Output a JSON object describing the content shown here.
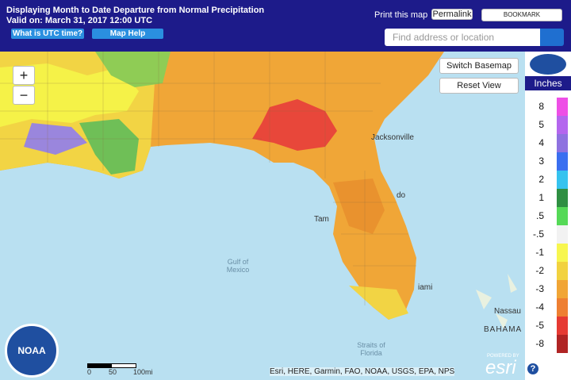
{
  "header": {
    "title": "Displaying Month to Date Departure from Normal Precipitation",
    "valid": "Valid on: March 31, 2017 12:00 UTC",
    "utc_button": "What is UTC time?",
    "help_button": "Map Help",
    "print": "Print this map",
    "permalink": "Permalink",
    "bookmark": "BOOKMARK",
    "search_placeholder": "Find address or location"
  },
  "controls": {
    "zoom_in": "+",
    "zoom_out": "−",
    "switch_basemap": "Switch Basemap",
    "reset_view": "Reset View"
  },
  "legend": {
    "title": "Inches",
    "items": [
      {
        "label": "8",
        "color": "#ee4fe6"
      },
      {
        "label": "5",
        "color": "#b466ee"
      },
      {
        "label": "4",
        "color": "#8e72e0"
      },
      {
        "label": "3",
        "color": "#3a6ff0"
      },
      {
        "label": "2",
        "color": "#35c3ef"
      },
      {
        "label": "1",
        "color": "#2f8f42"
      },
      {
        "label": ".5",
        "color": "#55d957"
      },
      {
        "label": "-.5",
        "color": "#f2f2f2"
      },
      {
        "label": "-1",
        "color": "#f7f64f"
      },
      {
        "label": "-2",
        "color": "#f2d23f"
      },
      {
        "label": "-3",
        "color": "#f1a535"
      },
      {
        "label": "-4",
        "color": "#ee7f32"
      },
      {
        "label": "-5",
        "color": "#e63a33"
      },
      {
        "label": "-8",
        "color": "#b02424"
      }
    ]
  },
  "map_labels": [
    "Jacksonville",
    "Gulf of Mexico",
    "Straits of Florida",
    "Nassau",
    "BAHAMA",
    "Tam",
    "do",
    "iami"
  ],
  "scale_bar": [
    "0",
    "50",
    "100mi"
  ],
  "attribution": "Esri, HERE, Garmin, FAO, NOAA, USGS, EPA, NPS",
  "esri": {
    "powered": "POWERED BY",
    "logo": "esri"
  },
  "noaa": "NOAA",
  "help": "?"
}
